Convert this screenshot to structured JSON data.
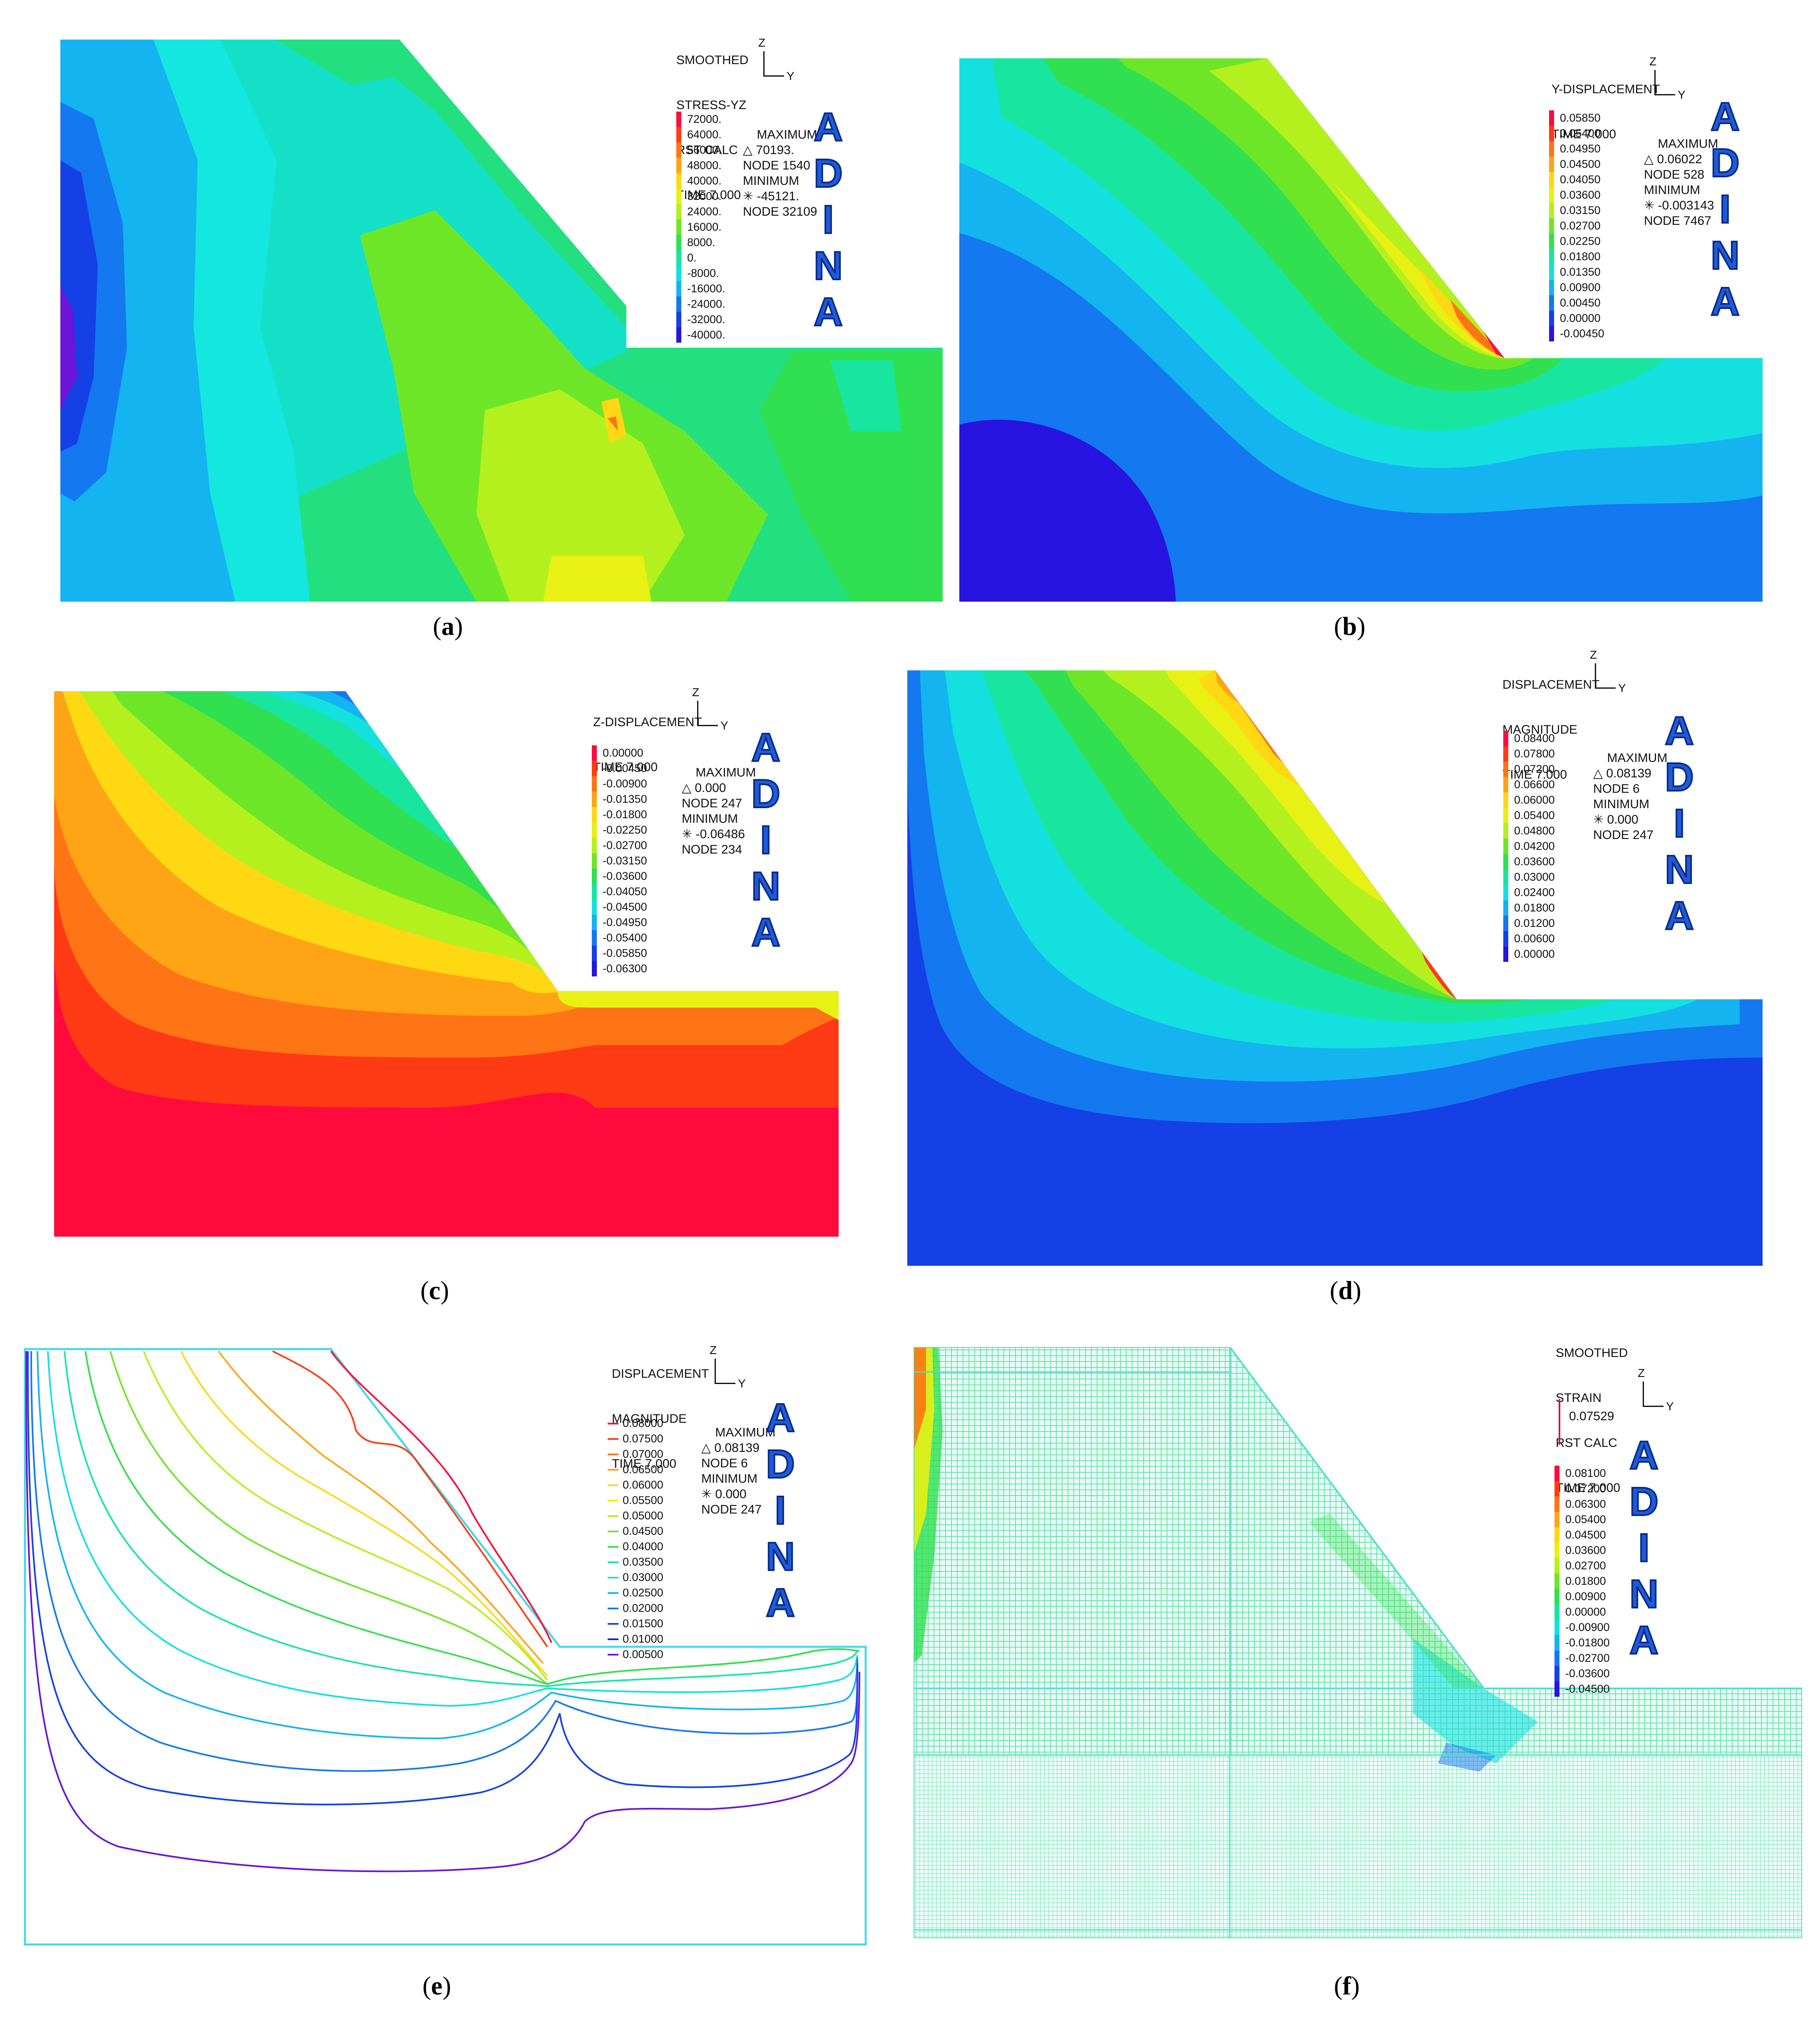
{
  "panels": [
    {
      "id": "a",
      "caption": "a",
      "info": [
        "SMOOTHED",
        "STRESS-YZ",
        "RST CALC",
        "TIME 7.000"
      ],
      "axis": {
        "z": "Z",
        "y": "Y"
      },
      "legend": [
        "72000.",
        "64000.",
        "56000.",
        "48000.",
        "40000.",
        "32000.",
        "24000.",
        "16000.",
        "8000.",
        "0.",
        "-8000.",
        "-16000.",
        "-24000.",
        "-32000.",
        "-40000."
      ],
      "max": [
        "MAXIMUM",
        "△ 70193.",
        "NODE 1540"
      ],
      "min": [
        "MINIMUM",
        "✳ -45121.",
        "NODE 32109"
      ],
      "logo": [
        "A",
        "D",
        "I",
        "N",
        "A"
      ]
    },
    {
      "id": "b",
      "caption": "b",
      "info": [
        "Y-DISPLACEMENT",
        "TIME 7.000"
      ],
      "axis": {
        "z": "Z",
        "y": "Y"
      },
      "legend": [
        "0.05850",
        "0.05400",
        "0.04950",
        "0.04500",
        "0.04050",
        "0.03600",
        "0.03150",
        "0.02700",
        "0.02250",
        "0.01800",
        "0.01350",
        "0.00900",
        "0.00450",
        "0.00000",
        "-0.00450"
      ],
      "max": [
        "MAXIMUM",
        "△ 0.06022",
        "NODE 528"
      ],
      "min": [
        "MINIMUM",
        "✳ -0.003143",
        "NODE 7467"
      ],
      "logo": [
        "A",
        "D",
        "I",
        "N",
        "A"
      ]
    },
    {
      "id": "c",
      "caption": "c",
      "info": [
        "Z-DISPLACEMENT",
        "TIME 7.000"
      ],
      "axis": {
        "z": "Z",
        "y": "Y"
      },
      "legend": [
        "0.00000",
        "-0.00450",
        "-0.00900",
        "-0.01350",
        "-0.01800",
        "-0.02250",
        "-0.02700",
        "-0.03150",
        "-0.03600",
        "-0.04050",
        "-0.04500",
        "-0.04950",
        "-0.05400",
        "-0.05850",
        "-0.06300"
      ],
      "max": [
        "MAXIMUM",
        "△ 0.000",
        "NODE 247"
      ],
      "min": [
        "MINIMUM",
        "✳ -0.06486",
        "NODE 234"
      ],
      "logo": [
        "A",
        "D",
        "I",
        "N",
        "A"
      ]
    },
    {
      "id": "d",
      "caption": "d",
      "info": [
        "DISPLACEMENT",
        "MAGNITUDE",
        "TIME 7.000"
      ],
      "axis": {
        "z": "Z",
        "y": "Y"
      },
      "legend": [
        "0.08400",
        "0.07800",
        "0.07200",
        "0.06600",
        "0.06000",
        "0.05400",
        "0.04800",
        "0.04200",
        "0.03600",
        "0.03000",
        "0.02400",
        "0.01800",
        "0.01200",
        "0.00600",
        "0.00000"
      ],
      "max": [
        "MAXIMUM",
        "△ 0.08139",
        "NODE 6"
      ],
      "min": [
        "MINIMUM",
        "✳ 0.000",
        "NODE 247"
      ],
      "logo": [
        "A",
        "D",
        "I",
        "N",
        "A"
      ]
    },
    {
      "id": "e",
      "caption": "e",
      "info": [
        "DISPLACEMENT",
        "MAGNITUDE",
        "TIME 7.000"
      ],
      "axis": {
        "z": "Z",
        "y": "Y"
      },
      "legend": [
        "0.08000",
        "0.07500",
        "0.07000",
        "0.06500",
        "0.06000",
        "0.05500",
        "0.05000",
        "0.04500",
        "0.04000",
        "0.03500",
        "0.03000",
        "0.02500",
        "0.02000",
        "0.01500",
        "0.01000",
        "0.00500"
      ],
      "max": [
        "MAXIMUM",
        "△ 0.08139",
        "NODE 6"
      ],
      "min": [
        "MINIMUM",
        "✳ 0.000",
        "NODE 247"
      ],
      "logo": [
        "A",
        "D",
        "I",
        "N",
        "A"
      ]
    },
    {
      "id": "f",
      "caption": "f",
      "info": [
        "SMOOTHED",
        "STRAIN",
        "RST CALC",
        "TIME 7.000"
      ],
      "axis": {
        "z": "Z",
        "y": "Y"
      },
      "arrow_label": "0.07529",
      "legend": [
        "0.08100",
        "0.07200",
        "0.06300",
        "0.05400",
        "0.04500",
        "0.03600",
        "0.02700",
        "0.01800",
        "0.00900",
        "0.00000",
        "-0.00900",
        "-0.01800",
        "-0.02700",
        "-0.03600",
        "-0.04500"
      ],
      "logo": [
        "A",
        "D",
        "I",
        "N",
        "A"
      ]
    }
  ],
  "palette": [
    "#ff0a3c",
    "#ff3a14",
    "#ff7414",
    "#ffa414",
    "#ffd814",
    "#e8f014",
    "#b4f01e",
    "#6ee628",
    "#30e050",
    "#18e6a0",
    "#14e0e0",
    "#14b4f0",
    "#1478f0",
    "#1440e6",
    "#2814e0",
    "#6a14d8"
  ],
  "colors": {
    "logo": "#1e5bd6",
    "background": "#ffffff",
    "mesh": "#4fe0c8"
  }
}
